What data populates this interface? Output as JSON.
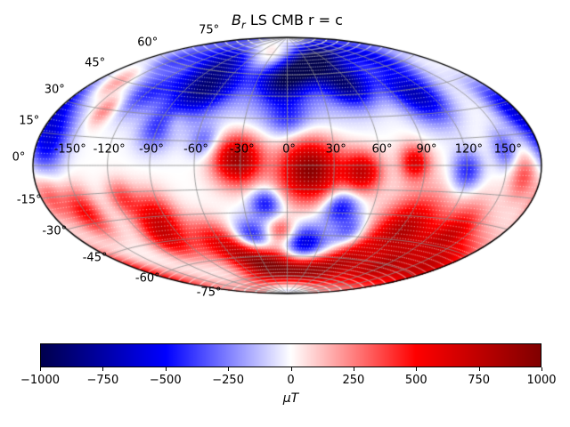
{
  "title": {
    "symbol": "B",
    "subscript": "r",
    "rest": " LS CMB r = c"
  },
  "map": {
    "lat_labels": [
      {
        "text": "75°",
        "lat": 75
      },
      {
        "text": "60°",
        "lat": 60
      },
      {
        "text": "45°",
        "lat": 45
      },
      {
        "text": "30°",
        "lat": 30
      },
      {
        "text": "15°",
        "lat": 15
      },
      {
        "text": "0°",
        "lat": 0
      },
      {
        "text": "-15°",
        "lat": -15
      },
      {
        "text": "-30°",
        "lat": -30
      },
      {
        "text": "-45°",
        "lat": -45
      },
      {
        "text": "-60°",
        "lat": -60
      },
      {
        "text": "-75°",
        "lat": -75
      }
    ],
    "lon_labels": [
      {
        "text": "-150°",
        "lon": -150
      },
      {
        "text": "-120°",
        "lon": -120
      },
      {
        "text": "-90°",
        "lon": -90
      },
      {
        "text": "-60°",
        "lon": -60
      },
      {
        "text": "-30°",
        "lon": -30
      },
      {
        "text": "0°",
        "lon": 0
      },
      {
        "text": "30°",
        "lon": 30
      },
      {
        "text": "60°",
        "lon": 60
      },
      {
        "text": "90°",
        "lon": 90
      },
      {
        "text": "120°",
        "lon": 120
      },
      {
        "text": "150°",
        "lon": 150
      }
    ],
    "grid_color": "#8c8c8c",
    "outline_color": "#000000"
  },
  "colorbar": {
    "label": "μT",
    "tick_labels": [
      "−1000",
      "−750",
      "−500",
      "−250",
      "0",
      "250",
      "500",
      "750",
      "1000"
    ],
    "gradient_stops": [
      "#00004d",
      "#0000ff",
      "#ffffff",
      "#ff0000",
      "#800000"
    ]
  },
  "chart_data": {
    "type": "heatmap",
    "title": "B_r LS CMB r = c",
    "projection": "hammer",
    "units": "μT",
    "colormap": "seismic",
    "clim": [
      -1000,
      1000
    ],
    "colorbar_ticks": [
      -1000,
      -750,
      -500,
      -250,
      0,
      250,
      500,
      750,
      1000
    ],
    "lon_ticks": [
      -150,
      -120,
      -90,
      -60,
      -30,
      0,
      30,
      60,
      90,
      120,
      150
    ],
    "lat_ticks": [
      -75,
      -60,
      -45,
      -30,
      -15,
      0,
      15,
      30,
      45,
      60,
      75
    ],
    "grid": {
      "lon_step_deg": 30,
      "lat_step_deg": 15
    },
    "field_blobs_format": [
      "lon_deg",
      "lat_deg",
      "amplitude_uT",
      "sigma_deg"
    ],
    "field_blobs": [
      [
        -30,
        78,
        650,
        11
      ],
      [
        -160,
        45,
        250,
        7
      ],
      [
        -140,
        30,
        280,
        6
      ],
      [
        -80,
        27,
        220,
        6
      ],
      [
        -32,
        4,
        900,
        11
      ],
      [
        14,
        -2,
        1000,
        14
      ],
      [
        48,
        -4,
        700,
        9
      ],
      [
        83,
        2,
        600,
        7
      ],
      [
        165,
        -5,
        350,
        8
      ],
      [
        -172,
        -15,
        320,
        8
      ],
      [
        -150,
        -24,
        500,
        9
      ],
      [
        -115,
        -18,
        350,
        7
      ],
      [
        -95,
        -30,
        560,
        10
      ],
      [
        -105,
        -44,
        480,
        9
      ],
      [
        -62,
        -48,
        520,
        10
      ],
      [
        -45,
        -58,
        500,
        8
      ],
      [
        -15,
        -68,
        950,
        11
      ],
      [
        -5,
        -42,
        380,
        6
      ],
      [
        30,
        -70,
        600,
        9
      ],
      [
        65,
        -62,
        500,
        9
      ],
      [
        90,
        -38,
        600,
        13
      ],
      [
        135,
        -38,
        500,
        10
      ],
      [
        165,
        -55,
        600,
        12
      ],
      [
        115,
        -62,
        420,
        9
      ],
      [
        110,
        -45,
        250,
        25
      ],
      [
        -75,
        48,
        -800,
        13
      ],
      [
        -120,
        42,
        -400,
        10
      ],
      [
        -5,
        56,
        -700,
        10
      ],
      [
        20,
        68,
        -600,
        9
      ],
      [
        55,
        52,
        -750,
        10
      ],
      [
        108,
        42,
        -700,
        12
      ],
      [
        150,
        8,
        -350,
        7
      ],
      [
        175,
        28,
        -480,
        10
      ],
      [
        -150,
        62,
        -350,
        9
      ],
      [
        -90,
        70,
        -450,
        10
      ],
      [
        60,
        75,
        -500,
        9
      ],
      [
        130,
        68,
        -450,
        10
      ],
      [
        -170,
        12,
        -550,
        11
      ],
      [
        -90,
        22,
        -380,
        9
      ],
      [
        -55,
        15,
        -300,
        7
      ],
      [
        0,
        30,
        -250,
        8
      ],
      [
        120,
        -3,
        -480,
        8
      ],
      [
        -15,
        -24,
        -500,
        7
      ],
      [
        37,
        -26,
        -550,
        8
      ],
      [
        50,
        -42,
        -350,
        7
      ],
      [
        -30,
        -46,
        -550,
        8
      ],
      [
        15,
        -52,
        -700,
        9
      ],
      [
        12,
        -82,
        -550,
        9
      ],
      [
        0,
        50,
        -250,
        28
      ]
    ]
  }
}
